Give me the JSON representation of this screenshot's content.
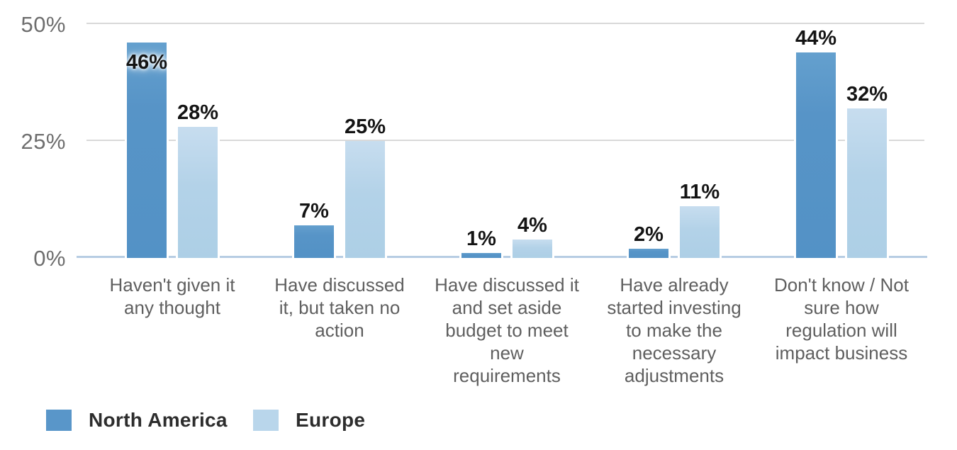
{
  "chart_data": {
    "type": "bar",
    "title": "",
    "xlabel": "",
    "ylabel": "",
    "ylim": [
      0,
      50
    ],
    "grid": true,
    "legend_position": "bottom-left",
    "value_suffix": "%",
    "ytick_labels": {
      "t0": "0%",
      "t25": "25%",
      "t50": "50%"
    },
    "categories": [
      "Haven't given it any thought",
      "Have discussed it, but taken no action",
      "Have discussed it and set aside budget to meet new requirements",
      "Have already started investing to make the necessary adjustments",
      "Don't know / Not sure how regulation will impact business"
    ],
    "category_lines": [
      [
        "Haven't given it",
        "any thought"
      ],
      [
        "Have discussed",
        "it, but taken no",
        "action"
      ],
      [
        "Have discussed it",
        "and set aside",
        "budget to meet",
        "new",
        "requirements"
      ],
      [
        "Have already",
        "started investing",
        "to make the",
        "necessary",
        "adjustments"
      ],
      [
        "Don't know / Not",
        "sure how",
        "regulation will",
        "impact business"
      ]
    ],
    "series": [
      {
        "name": "North America",
        "color": "#5996c9",
        "values": [
          46,
          7,
          1,
          2,
          44
        ]
      },
      {
        "name": "Europe",
        "color": "#b9d6eb",
        "values": [
          28,
          25,
          4,
          11,
          32
        ]
      }
    ],
    "value_labels": {
      "north_america": [
        "46%",
        "7%",
        "1%",
        "2%",
        "44%"
      ],
      "europe": [
        "28%",
        "25%",
        "4%",
        "11%",
        "32%"
      ]
    },
    "colors": {
      "gridline": "#d9d9d9",
      "baseline": "#b7cde3",
      "axis_text": "#6e6e6e",
      "category_text": "#5f5f5f",
      "value_text": "#141414",
      "legend_text": "#2d2d2d"
    }
  }
}
